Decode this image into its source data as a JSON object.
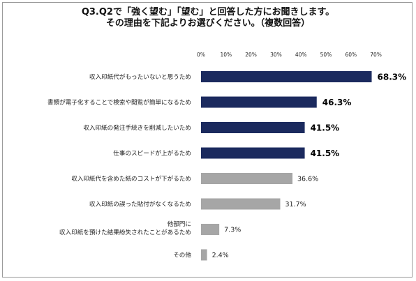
{
  "title": {
    "line1": "Q3.Q2で「強く望む」「望む」と回答した方にお聞きします。",
    "line2": "その理由を下記よりお選びください。（複数回答）"
  },
  "chart_data": {
    "type": "bar",
    "orientation": "horizontal",
    "title": "Q3.Q2で「強く望む」「望む」と回答した方にお聞きします。 その理由を下記よりお選びください。（複数回答）",
    "xlim": [
      0,
      70
    ],
    "x_ticks": [
      "0%",
      "10%",
      "20%",
      "30%",
      "40%",
      "50%",
      "60%",
      "70%"
    ],
    "grid": false,
    "categories": [
      [
        "収入印紙代がもったいないと思うため"
      ],
      [
        "書類が電子化することで検索や閲覧が簡単になるため"
      ],
      [
        "収入印紙の発注手続きを削減したいため"
      ],
      [
        "仕事のスピードが上がるため"
      ],
      [
        "収入印紙代を含めた紙のコストが下がるため"
      ],
      [
        "収入印紙の誤った貼付がなくなるため"
      ],
      [
        "他部門に",
        "収入印紙を預けた結果紛失されたことがあるため"
      ],
      [
        "その他"
      ]
    ],
    "values": [
      68.3,
      46.3,
      41.5,
      41.5,
      36.6,
      31.7,
      7.3,
      2.4
    ],
    "value_labels": [
      "68.3%",
      "46.3%",
      "41.5%",
      "41.5%",
      "36.6%",
      "31.7%",
      "7.3%",
      "2.4%"
    ],
    "highlight": [
      true,
      true,
      true,
      true,
      false,
      false,
      false,
      false
    ],
    "colors": {
      "highlight": "#1b2a5e",
      "normal": "#a6a6a6"
    }
  }
}
